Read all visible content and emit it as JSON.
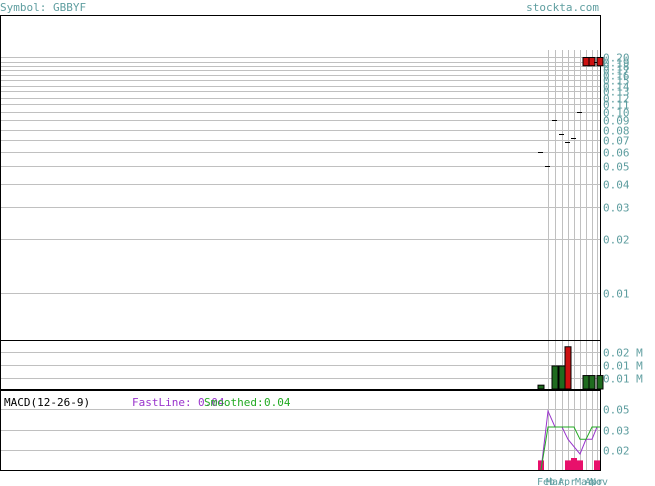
{
  "header": {
    "symbol_label": "Symbol: GBBYF",
    "site": "stockta.com"
  },
  "colors": {
    "grid": "#c0c0c0",
    "frame": "#000000",
    "axis_text": "#5f9ea0",
    "up": "#1f6b1f",
    "down": "#cc1111",
    "macd_fast": "#9933cc",
    "macd_smooth": "#22aa22",
    "hist": "#e8106b"
  },
  "chart_data": [
    {
      "type": "bar",
      "title": "",
      "scale": "log",
      "ylim": [
        0.0055,
        0.22
      ],
      "y_ticks": [
        "0.20",
        "0.19",
        "0.18",
        "0.17",
        "0.16",
        "0.15",
        "0.14",
        "0.13",
        "0.12",
        "0.11",
        "0.10",
        "0.09",
        "0.08",
        "0.07",
        "0.06",
        "0.05",
        "0.04",
        "0.03",
        "0.02",
        "0.01"
      ],
      "x": [
        "Feb",
        "Mar",
        "Apr",
        "Mar",
        "Apr",
        "Nov"
      ],
      "ohlc": [
        {
          "open": 0.06,
          "high": 0.06,
          "low": 0.06,
          "close": 0.06
        },
        {
          "open": 0.05,
          "high": 0.05,
          "low": 0.05,
          "close": 0.05
        },
        {
          "open": 0.09,
          "high": 0.09,
          "low": 0.09,
          "close": 0.09
        },
        {
          "open": 0.076,
          "high": 0.076,
          "low": 0.076,
          "close": 0.076
        },
        {
          "open": 0.068,
          "high": 0.068,
          "low": 0.068,
          "close": 0.068
        },
        {
          "open": 0.072,
          "high": 0.072,
          "low": 0.072,
          "close": 0.072
        },
        {
          "open": 0.1,
          "high": 0.1,
          "low": 0.1,
          "close": 0.1
        },
        {
          "open": 0.2,
          "high": 0.2,
          "low": 0.18,
          "close": 0.18
        },
        {
          "open": 0.2,
          "high": 0.2,
          "low": 0.18,
          "close": 0.18
        },
        {
          "open": 0.19,
          "high": 0.19,
          "low": 0.19,
          "close": 0.19
        },
        {
          "open": 0.2,
          "high": 0.2,
          "low": 0.18,
          "close": 0.18
        }
      ]
    },
    {
      "type": "bar",
      "title": "",
      "y_ticks": [
        "0.02 M",
        "0.01 M",
        "0.01 M"
      ],
      "ylim": [
        0,
        0.025
      ],
      "series": [
        {
          "values": [
            0.002,
            0.0,
            0.012,
            0.012,
            0.022,
            0.0,
            0.0,
            0.007,
            0.007,
            0.0,
            0.007
          ],
          "up": [
            true,
            true,
            true,
            true,
            false,
            true,
            true,
            true,
            true,
            true,
            true
          ]
        }
      ]
    },
    {
      "type": "line",
      "title": "MACD(12-26-9)",
      "fast_label": "FastLine:",
      "fast_value": "0.04",
      "smooth_label": "Smoothed:",
      "smooth_value": "0.04",
      "y_ticks": [
        "0.05",
        "0.03",
        "0.02"
      ],
      "ylim": [
        0.005,
        0.062
      ],
      "series": [
        {
          "name": "FastLine",
          "values": [
            0.005,
            0.053,
            0.04,
            0.04,
            0.03,
            0.024,
            0.018,
            0.03,
            0.03,
            0.04,
            0.04
          ]
        },
        {
          "name": "Smoothed",
          "values": [
            0.005,
            0.04,
            0.04,
            0.04,
            0.04,
            0.04,
            0.03,
            0.03,
            0.04,
            0.04,
            0.04
          ]
        }
      ],
      "histogram": [
        0.012,
        0.0,
        0.0,
        0.0,
        -0.012,
        -0.015,
        -0.012,
        0.0,
        0.0,
        0.012,
        0.0
      ]
    }
  ],
  "x_labels_text": [
    "Feb",
    "Mar",
    "Apr",
    "Nov"
  ]
}
